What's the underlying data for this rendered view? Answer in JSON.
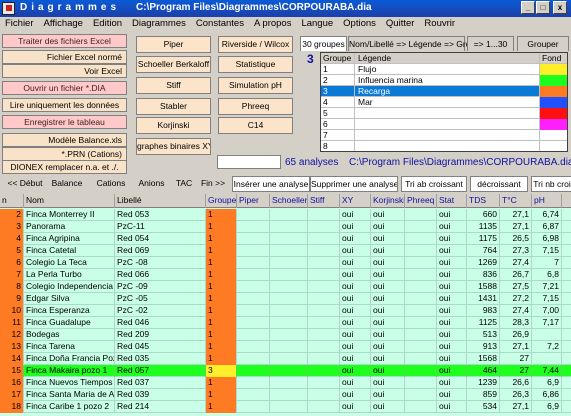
{
  "window": {
    "app_name": "Diagrammes",
    "path": "C:\\Program Files\\Diagrammes\\CORPOURABA.dia",
    "min": "_",
    "max": "□",
    "close": "x"
  },
  "menu": [
    "Fichier",
    "Affichage",
    "Edition",
    "Diagrammes",
    "Constantes",
    "A propos",
    "Langue",
    "Options",
    "Quitter",
    "Rouvrir"
  ],
  "left_buttons": [
    {
      "label": "Traiter des fichiers Excel",
      "style": "pink"
    },
    {
      "label": "Fichier Excel normé",
      "style": "peach-r"
    },
    {
      "label": "Voir Excel",
      "style": "peach-r"
    },
    {
      "label": "Ouvrir un fichier *.DIA",
      "style": "pink"
    },
    {
      "label": "Lire uniquement les données",
      "style": "peach"
    },
    {
      "label": "Enregistrer le tableau",
      "style": "pink"
    },
    {
      "label": "Modèle Balance.xls",
      "style": "peach-r"
    },
    {
      "label": "*.PRN (Cations)",
      "style": "peach-r"
    },
    {
      "label": "DIONEX remplacer n.a. et ./.",
      "style": "peach"
    }
  ],
  "diagram_buttons": {
    "col1": [
      "Piper",
      "Schoeller Berkaloff",
      "Stiff",
      "Stabler",
      "Korjinski",
      "graphes binaires XY"
    ],
    "col2": [
      "Riverside / Wilcox",
      "Statistique",
      "Simulation pH",
      "Phreeq",
      "C14"
    ]
  },
  "group_tabs": [
    "30 groupes",
    "Nom/Libellé => Légende => Groupe",
    "=> 1...30",
    "Grouper"
  ],
  "group_count": "3",
  "group_table": {
    "headers": [
      "Groupe",
      "Légende",
      "Fond"
    ],
    "rows": [
      {
        "n": "1",
        "label": "Flujo",
        "color": "#ffef2a"
      },
      {
        "n": "2",
        "label": "Influencia marina",
        "color": "#1eff1e"
      },
      {
        "n": "3",
        "label": "Recarga",
        "color": "#ff7b23"
      },
      {
        "n": "4",
        "label": "Mar",
        "color": "#2050ff"
      },
      {
        "n": "5",
        "label": "",
        "color": "#ff1010"
      },
      {
        "n": "6",
        "label": "",
        "color": "#ff20ff"
      },
      {
        "n": "7",
        "label": "",
        "color": ""
      },
      {
        "n": "8",
        "label": "",
        "color": ""
      }
    ]
  },
  "status": {
    "analyses": "65 analyses",
    "path": "C:\\Program Files\\Diagrammes\\CORPOURABA.dia"
  },
  "nav_buttons": [
    "<< Début",
    "Balance",
    "Cations",
    "Anions",
    "TAC",
    "Fin >>",
    "Insérer une analyse",
    "Supprimer une analyse",
    "Tri ab croissant",
    "décroissant",
    "Tri nb croi"
  ],
  "grid": {
    "headers": [
      "n",
      "Nom",
      "Libellé",
      "Groupe",
      "Piper",
      "Schoeller",
      "Stiff",
      "XY",
      "Korjinski",
      "Phreeq",
      "Stat",
      "TDS",
      "T°C",
      "pH"
    ],
    "rows": [
      {
        "n": "2",
        "nom": "Finca Monterrey II",
        "lib": "Red 053",
        "grp": "1",
        "xy": "oui",
        "kor": "oui",
        "stat": "oui",
        "tds": "660",
        "t": "27,1",
        "ph": "6,74"
      },
      {
        "n": "3",
        "nom": "Panorama",
        "lib": "PzC-11",
        "grp": "1",
        "xy": "oui",
        "kor": "oui",
        "stat": "oui",
        "tds": "1135",
        "t": "27,1",
        "ph": "6,87"
      },
      {
        "n": "4",
        "nom": "Finca Agripina",
        "lib": "Red 054",
        "grp": "1",
        "xy": "oui",
        "kor": "oui",
        "stat": "oui",
        "tds": "1175",
        "t": "26,5",
        "ph": "6,98"
      },
      {
        "n": "5",
        "nom": "Finca Catetal",
        "lib": "Red 069",
        "grp": "1",
        "xy": "oui",
        "kor": "oui",
        "stat": "oui",
        "tds": "764",
        "t": "27,3",
        "ph": "7,15"
      },
      {
        "n": "6",
        "nom": "Colegio La Teca",
        "lib": "PzC -08",
        "grp": "1",
        "xy": "oui",
        "kor": "oui",
        "stat": "oui",
        "tds": "1269",
        "t": "27,4",
        "ph": "7"
      },
      {
        "n": "7",
        "nom": "La Perla Turbo",
        "lib": "Red 066",
        "grp": "1",
        "xy": "oui",
        "kor": "oui",
        "stat": "oui",
        "tds": "836",
        "t": "26,7",
        "ph": "6,8"
      },
      {
        "n": "8",
        "nom": "Colegio Independencia co",
        "lib": "PzC -09",
        "grp": "1",
        "xy": "oui",
        "kor": "oui",
        "stat": "oui",
        "tds": "1588",
        "t": "27,5",
        "ph": "7,21"
      },
      {
        "n": "9",
        "nom": "Edgar Silva",
        "lib": "PzC -05",
        "grp": "1",
        "xy": "oui",
        "kor": "oui",
        "stat": "oui",
        "tds": "1431",
        "t": "27,2",
        "ph": "7,15"
      },
      {
        "n": "10",
        "nom": "Finca Esperanza",
        "lib": "PzC -02",
        "grp": "1",
        "xy": "oui",
        "kor": "oui",
        "stat": "oui",
        "tds": "983",
        "t": "27,4",
        "ph": "7,00"
      },
      {
        "n": "11",
        "nom": "Finca Guadalupe",
        "lib": "Red 046",
        "grp": "1",
        "xy": "oui",
        "kor": "oui",
        "stat": "oui",
        "tds": "1125",
        "t": "28,3",
        "ph": "7,17"
      },
      {
        "n": "12",
        "nom": "Bodegas",
        "lib": "Red 209",
        "grp": "1",
        "xy": "oui",
        "kor": "oui",
        "stat": "oui",
        "tds": "513",
        "t": "26,9",
        "ph": ""
      },
      {
        "n": "13",
        "nom": "Finca Tarena",
        "lib": "Red 045",
        "grp": "1",
        "xy": "oui",
        "kor": "oui",
        "stat": "oui",
        "tds": "913",
        "t": "27,1",
        "ph": "7,2"
      },
      {
        "n": "14",
        "nom": "Finca Doña Francia Pozo",
        "lib": "Red 035",
        "grp": "1",
        "xy": "oui",
        "kor": "oui",
        "stat": "oui",
        "tds": "1568",
        "t": "27",
        "ph": ""
      },
      {
        "n": "15",
        "nom": "Finca Makaira pozo 1",
        "lib": "Red 057",
        "grp": "3",
        "xy": "oui",
        "kor": "oui",
        "stat": "oui",
        "tds": "464",
        "t": "27",
        "ph": "7,44",
        "selected": true
      },
      {
        "n": "16",
        "nom": "Finca Nuevos Tiempos F",
        "lib": "Red 037",
        "grp": "1",
        "xy": "oui",
        "kor": "oui",
        "stat": "oui",
        "tds": "1239",
        "t": "26,6",
        "ph": "6,9"
      },
      {
        "n": "17",
        "nom": "Finca Santa Maria de Ap",
        "lib": "Red 039",
        "grp": "1",
        "xy": "oui",
        "kor": "oui",
        "stat": "oui",
        "tds": "859",
        "t": "26,3",
        "ph": "6,86"
      },
      {
        "n": "18",
        "nom": "Finca Caribe 1 pozo 2",
        "lib": "Red 214",
        "grp": "1",
        "xy": "oui",
        "kor": "oui",
        "stat": "oui",
        "tds": "534",
        "t": "27,1",
        "ph": "6,9"
      }
    ]
  }
}
